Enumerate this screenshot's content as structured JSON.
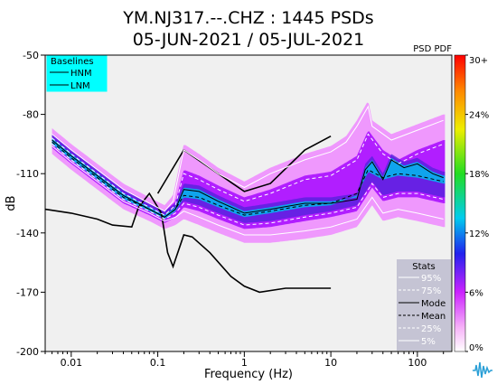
{
  "title_line1": "YM.NJ317.--.CHZ : 1445 PSDs",
  "title_line2": "05-JUN-2021 / 05-JUL-2021",
  "colorbar": {
    "label": "PSD PDF",
    "ticks": [
      "30+",
      "24%",
      "18%",
      "12%",
      "6%",
      "0%"
    ]
  },
  "baselines": {
    "title": "Baselines",
    "items": [
      "HNM",
      "LNM"
    ]
  },
  "stats": {
    "title": "Stats",
    "items": [
      "95%",
      "75%",
      "Mode",
      "Mean",
      "25%",
      "5%"
    ]
  },
  "chart_data": {
    "type": "heatmap",
    "title": "YM.NJ317.--.CHZ : 1445 PSDs",
    "subtitle": "05-JUN-2021 / 05-JUL-2021",
    "xlabel": "Frequency (Hz)",
    "ylabel": "dB",
    "x_scale": "log",
    "xlim": [
      0.005,
      250
    ],
    "ylim": [
      -200,
      -50
    ],
    "x_ticks": [
      {
        "v": 0.01,
        "label": "0.01"
      },
      {
        "v": 0.1,
        "label": "0.1"
      },
      {
        "v": 1,
        "label": "1"
      },
      {
        "v": 10,
        "label": "10"
      },
      {
        "v": 100,
        "label": "100"
      }
    ],
    "y_ticks": [
      -50,
      -80,
      -110,
      -140,
      -170,
      -200
    ],
    "colorscale_range_percent": [
      0,
      30
    ],
    "legend_location": "top-left (baselines), bottom-right (stats)",
    "series": [
      {
        "name": "HNM",
        "color": "#000000",
        "style": "solid",
        "points": [
          [
            0.1,
            -120
          ],
          [
            0.2,
            -98
          ],
          [
            0.5,
            -110
          ],
          [
            1,
            -119
          ],
          [
            2,
            -115
          ],
          [
            5,
            -98
          ],
          [
            10,
            -91
          ]
        ]
      },
      {
        "name": "LNM",
        "color": "#000000",
        "style": "solid",
        "points": [
          [
            0.005,
            -128
          ],
          [
            0.01,
            -130
          ],
          [
            0.02,
            -133
          ],
          [
            0.03,
            -136
          ],
          [
            0.05,
            -137
          ],
          [
            0.06,
            -127
          ],
          [
            0.08,
            -120
          ],
          [
            0.11,
            -130
          ],
          [
            0.13,
            -150
          ],
          [
            0.15,
            -157
          ],
          [
            0.2,
            -141
          ],
          [
            0.25,
            -142
          ],
          [
            0.4,
            -150
          ],
          [
            0.7,
            -162
          ],
          [
            1,
            -167
          ],
          [
            1.5,
            -170
          ],
          [
            3,
            -168
          ],
          [
            10,
            -168
          ]
        ]
      },
      {
        "name": "95%",
        "color": "#ffffff",
        "style": "solid",
        "points": [
          [
            0.006,
            -90
          ],
          [
            0.01,
            -98
          ],
          [
            0.02,
            -108
          ],
          [
            0.04,
            -118
          ],
          [
            0.08,
            -125
          ],
          [
            0.12,
            -129
          ],
          [
            0.15,
            -124
          ],
          [
            0.2,
            -98
          ],
          [
            0.3,
            -103
          ],
          [
            0.5,
            -110
          ],
          [
            1,
            -117
          ],
          [
            2,
            -110
          ],
          [
            5,
            -103
          ],
          [
            10,
            -99
          ],
          [
            15,
            -94
          ],
          [
            20,
            -86
          ],
          [
            27,
            -76
          ],
          [
            30,
            -86
          ],
          [
            50,
            -93
          ],
          [
            100,
            -88
          ],
          [
            200,
            -83
          ]
        ]
      },
      {
        "name": "75%",
        "color": "#ffffff",
        "style": "dashed",
        "points": [
          [
            0.006,
            -92
          ],
          [
            0.01,
            -100
          ],
          [
            0.02,
            -110
          ],
          [
            0.04,
            -120
          ],
          [
            0.08,
            -127
          ],
          [
            0.12,
            -131
          ],
          [
            0.16,
            -126
          ],
          [
            0.2,
            -110
          ],
          [
            0.3,
            -113
          ],
          [
            0.5,
            -118
          ],
          [
            1,
            -124
          ],
          [
            2,
            -120
          ],
          [
            5,
            -113
          ],
          [
            10,
            -111
          ],
          [
            20,
            -103
          ],
          [
            27,
            -90
          ],
          [
            40,
            -100
          ],
          [
            60,
            -105
          ],
          [
            100,
            -100
          ],
          [
            200,
            -95
          ]
        ]
      },
      {
        "name": "Mode",
        "color": "#000000",
        "style": "solid",
        "points": [
          [
            0.006,
            -93
          ],
          [
            0.01,
            -101
          ],
          [
            0.02,
            -111
          ],
          [
            0.04,
            -121
          ],
          [
            0.08,
            -128
          ],
          [
            0.12,
            -132
          ],
          [
            0.16,
            -128
          ],
          [
            0.2,
            -118
          ],
          [
            0.3,
            -119
          ],
          [
            0.5,
            -124
          ],
          [
            1,
            -130
          ],
          [
            2,
            -128
          ],
          [
            5,
            -125
          ],
          [
            10,
            -125
          ],
          [
            20,
            -123
          ],
          [
            25,
            -108
          ],
          [
            30,
            -104
          ],
          [
            40,
            -113
          ],
          [
            50,
            -103
          ],
          [
            70,
            -107
          ],
          [
            100,
            -105
          ],
          [
            150,
            -110
          ],
          [
            200,
            -112
          ]
        ]
      },
      {
        "name": "Mean",
        "color": "#000000",
        "style": "dashed",
        "points": [
          [
            0.006,
            -94
          ],
          [
            0.01,
            -102
          ],
          [
            0.02,
            -112
          ],
          [
            0.04,
            -122
          ],
          [
            0.08,
            -128
          ],
          [
            0.12,
            -132
          ],
          [
            0.16,
            -128
          ],
          [
            0.2,
            -121
          ],
          [
            0.3,
            -122
          ],
          [
            0.5,
            -126
          ],
          [
            1,
            -131
          ],
          [
            2,
            -129
          ],
          [
            5,
            -126
          ],
          [
            10,
            -125
          ],
          [
            20,
            -120
          ],
          [
            27,
            -108
          ],
          [
            40,
            -112
          ],
          [
            60,
            -110
          ],
          [
            100,
            -111
          ],
          [
            200,
            -114
          ]
        ]
      },
      {
        "name": "25%",
        "color": "#ffffff",
        "style": "dashed",
        "points": [
          [
            0.006,
            -95
          ],
          [
            0.01,
            -103
          ],
          [
            0.02,
            -113
          ],
          [
            0.04,
            -123
          ],
          [
            0.08,
            -129
          ],
          [
            0.12,
            -133
          ],
          [
            0.16,
            -130
          ],
          [
            0.2,
            -125
          ],
          [
            0.3,
            -127
          ],
          [
            0.5,
            -131
          ],
          [
            1,
            -136
          ],
          [
            2,
            -135
          ],
          [
            5,
            -132
          ],
          [
            10,
            -130
          ],
          [
            20,
            -127
          ],
          [
            30,
            -115
          ],
          [
            40,
            -122
          ],
          [
            60,
            -120
          ],
          [
            100,
            -120
          ],
          [
            200,
            -123
          ]
        ]
      },
      {
        "name": "5%",
        "color": "#ffffff",
        "style": "solid",
        "points": [
          [
            0.006,
            -96
          ],
          [
            0.01,
            -104
          ],
          [
            0.02,
            -114
          ],
          [
            0.04,
            -124
          ],
          [
            0.08,
            -130
          ],
          [
            0.12,
            -134
          ],
          [
            0.16,
            -132
          ],
          [
            0.2,
            -129
          ],
          [
            0.3,
            -132
          ],
          [
            0.5,
            -136
          ],
          [
            1,
            -141
          ],
          [
            2,
            -141
          ],
          [
            5,
            -139
          ],
          [
            10,
            -137
          ],
          [
            20,
            -133
          ],
          [
            30,
            -122
          ],
          [
            40,
            -130
          ],
          [
            60,
            -128
          ],
          [
            100,
            -130
          ],
          [
            200,
            -133
          ]
        ]
      }
    ]
  }
}
